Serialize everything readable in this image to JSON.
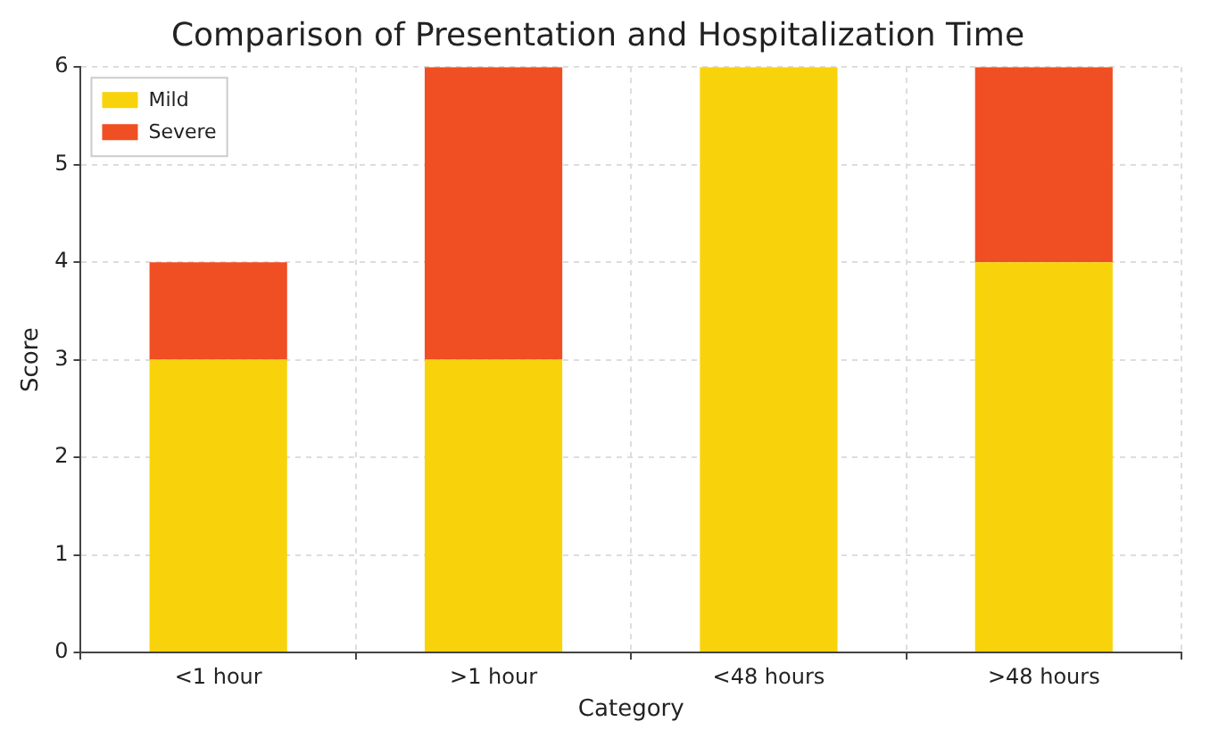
{
  "chart_data": {
    "type": "bar",
    "title": "Comparison of Presentation and Hospitalization Time",
    "xlabel": "Category",
    "ylabel": "Score",
    "categories": [
      "<1 hour",
      ">1 hour",
      "<48 hours",
      ">48 hours"
    ],
    "stacked": true,
    "series": [
      {
        "name": "Mild",
        "color": "#f8d30c",
        "values": [
          3,
          3,
          6,
          4
        ]
      },
      {
        "name": "Severe",
        "color": "#f04e23",
        "values": [
          1,
          3,
          0,
          2
        ]
      }
    ],
    "ylim": [
      0,
      6
    ],
    "yticks": [
      0,
      1,
      2,
      3,
      4,
      5,
      6
    ],
    "grid": true,
    "legend": "top left"
  }
}
